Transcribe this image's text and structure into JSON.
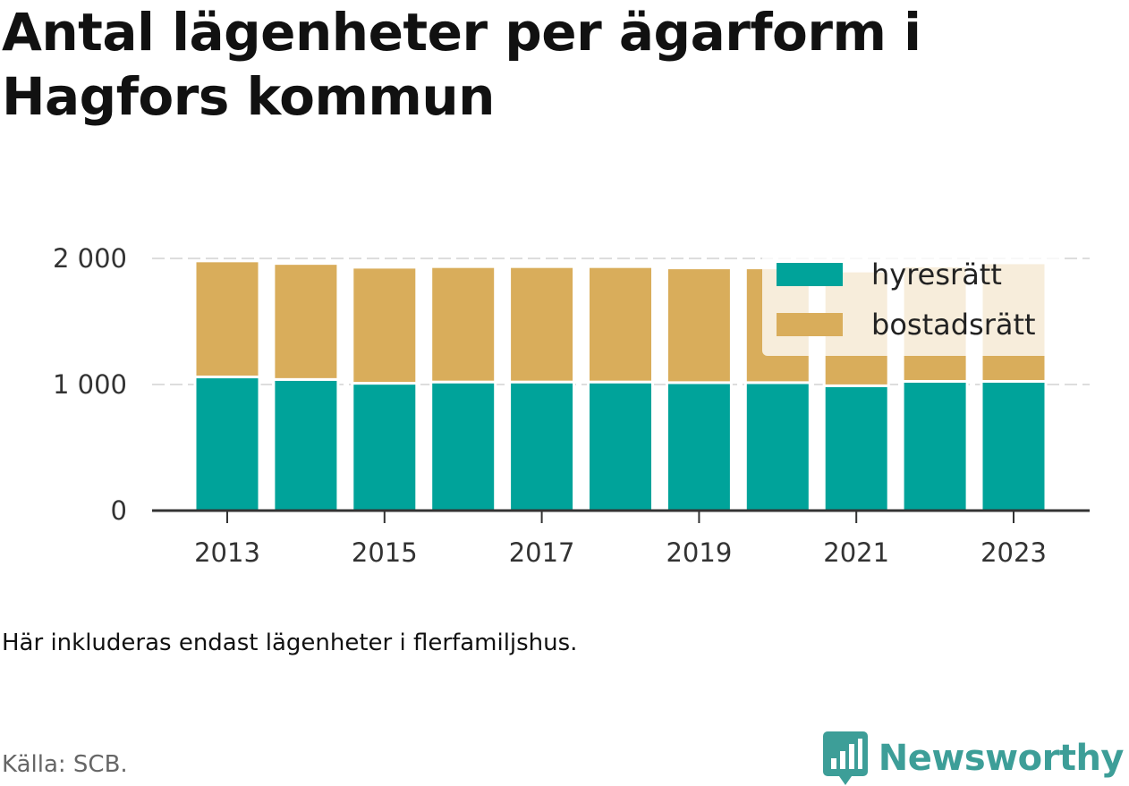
{
  "header": {
    "title": "Antal lägenheter per ägarform i Hagfors kommun"
  },
  "footer": {
    "note": "Här inkluderas endast lägenheter i flerfamiljshus.",
    "source": "Källa: SCB.",
    "brand": "Newsworthy"
  },
  "colors": {
    "hyresratt": "#00a39a",
    "bostadsratt": "#d9ad5b",
    "axis": "#333333",
    "grid": "#dddddd",
    "brand": "#3d9e98"
  },
  "chart_data": {
    "type": "bar",
    "stacked": true,
    "x": [
      2013,
      2014,
      2015,
      2016,
      2017,
      2018,
      2019,
      2020,
      2021,
      2022,
      2023
    ],
    "x_tick_labels": [
      "2013",
      "2015",
      "2017",
      "2019",
      "2021",
      "2023"
    ],
    "y_ticks": [
      0,
      1000,
      2000
    ],
    "y_tick_labels": [
      "0",
      "1 000",
      "2 000"
    ],
    "ylim": [
      0,
      2000
    ],
    "grid": true,
    "legend_position": "top-right",
    "series": [
      {
        "name": "hyresrätt",
        "values": [
          1060,
          1040,
          1010,
          1020,
          1020,
          1020,
          1015,
          1015,
          990,
          1025,
          1025
        ]
      },
      {
        "name": "bostadsrätt",
        "values": [
          920,
          920,
          920,
          915,
          915,
          915,
          910,
          910,
          910,
          915,
          940
        ]
      }
    ]
  }
}
